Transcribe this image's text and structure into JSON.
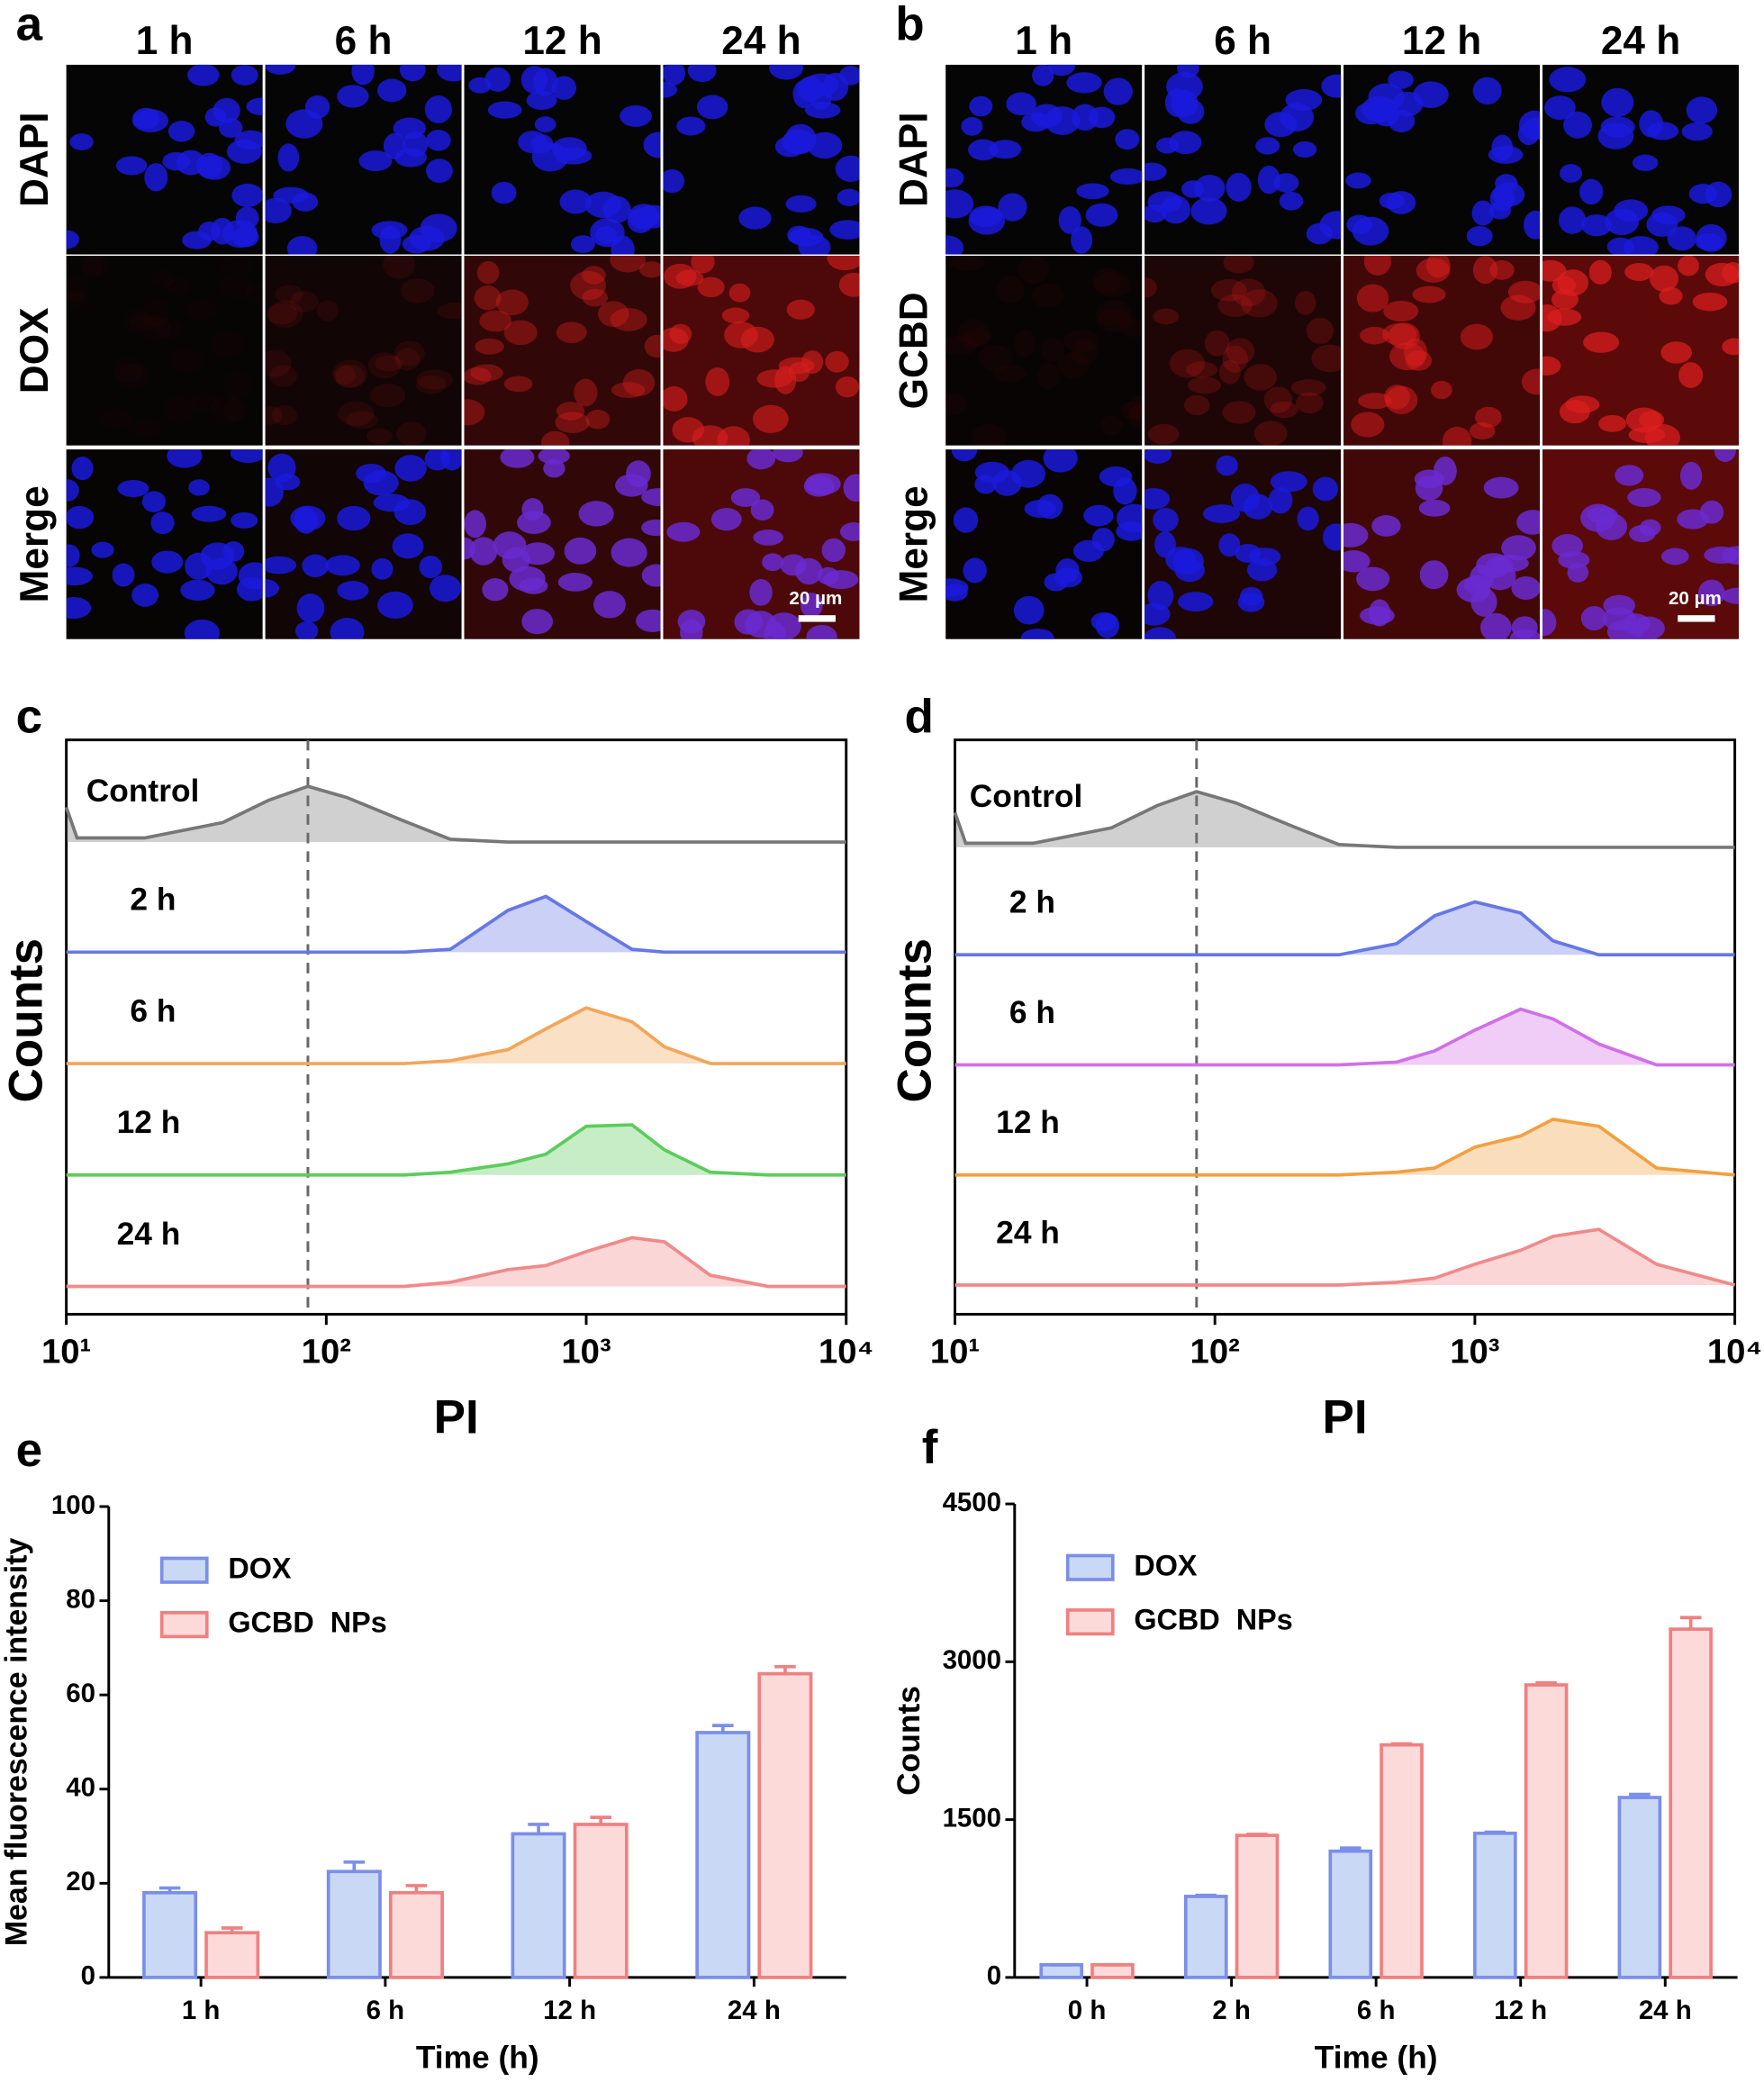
{
  "figure": {
    "panels": [
      {
        "letter": "a",
        "columns": [
          "1 h",
          "6 h",
          "12 h",
          "24 h"
        ],
        "rows": [
          "DAPI",
          "DOX",
          "Merge"
        ],
        "scale_bar": "20 µm"
      },
      {
        "letter": "b",
        "columns": [
          "1 h",
          "6 h",
          "12 h",
          "24 h"
        ],
        "rows": [
          "DAPI",
          "GCBD",
          "Merge"
        ],
        "scale_bar": "20 µm"
      }
    ]
  },
  "chart_data": [
    {
      "type": "histogram-stack",
      "panel": "c",
      "xlabel": "PI",
      "ylabel": "Counts",
      "log_x": true,
      "xlim": [
        10,
        10000
      ],
      "xticks": [
        {
          "value": 10,
          "label": "10¹"
        },
        {
          "value": 100,
          "label": "10²"
        },
        {
          "value": 1000,
          "label": "10³"
        },
        {
          "value": 10000,
          "label": "10⁴"
        }
      ],
      "reference_x": 85,
      "x": [
        10,
        11,
        20,
        40,
        60,
        85,
        120,
        200,
        300,
        500,
        700,
        1000,
        1500,
        2000,
        3000,
        5000,
        10000
      ],
      "series": [
        {
          "name": "Control",
          "color": "#777777",
          "values": [
            25,
            3,
            3,
            14,
            30,
            40,
            32,
            15,
            2,
            0,
            0,
            0,
            0,
            0,
            0,
            0,
            0
          ]
        },
        {
          "name": "2 h",
          "color": "#6677e6",
          "values": [
            0,
            0,
            0,
            0,
            0,
            0,
            0,
            0,
            2,
            30,
            40,
            22,
            2,
            0,
            0,
            0,
            0
          ]
        },
        {
          "name": "6 h",
          "color": "#f2a65a",
          "values": [
            0,
            0,
            0,
            0,
            0,
            0,
            0,
            0,
            2,
            10,
            25,
            40,
            30,
            12,
            0,
            0,
            0
          ]
        },
        {
          "name": "12 h",
          "color": "#5ccc5c",
          "values": [
            0,
            0,
            0,
            0,
            0,
            0,
            0,
            0,
            2,
            8,
            15,
            35,
            36,
            18,
            2,
            0,
            0
          ]
        },
        {
          "name": "24 h",
          "color": "#f08a8a",
          "values": [
            0,
            0,
            0,
            0,
            0,
            0,
            0,
            0,
            3,
            12,
            15,
            25,
            35,
            32,
            8,
            0,
            0
          ]
        }
      ]
    },
    {
      "type": "histogram-stack",
      "panel": "d",
      "xlabel": "PI",
      "ylabel": "Counts",
      "log_x": true,
      "xlim": [
        10,
        10000
      ],
      "xticks": [
        {
          "value": 10,
          "label": "10¹"
        },
        {
          "value": 100,
          "label": "10²"
        },
        {
          "value": 1000,
          "label": "10³"
        },
        {
          "value": 10000,
          "label": "10⁴"
        }
      ],
      "reference_x": 85,
      "x": [
        10,
        11,
        20,
        40,
        60,
        85,
        120,
        200,
        300,
        500,
        700,
        1000,
        1500,
        2000,
        3000,
        5000,
        10000
      ],
      "series": [
        {
          "name": "Control",
          "color": "#777777",
          "values": [
            25,
            3,
            3,
            14,
            30,
            40,
            32,
            15,
            2,
            0,
            0,
            0,
            0,
            0,
            0,
            0,
            0
          ]
        },
        {
          "name": "2 h",
          "color": "#6677e6",
          "values": [
            0,
            0,
            0,
            0,
            0,
            0,
            0,
            0,
            0,
            8,
            28,
            38,
            30,
            10,
            0,
            0,
            0
          ]
        },
        {
          "name": "6 h",
          "color": "#d070e8",
          "values": [
            0,
            0,
            0,
            0,
            0,
            0,
            0,
            0,
            0,
            2,
            10,
            25,
            40,
            33,
            15,
            0,
            0
          ]
        },
        {
          "name": "12 h",
          "color": "#f2a040",
          "values": [
            0,
            0,
            0,
            0,
            0,
            0,
            0,
            0,
            0,
            2,
            5,
            20,
            28,
            40,
            35,
            5,
            0
          ]
        },
        {
          "name": "24 h",
          "color": "#f08a8a",
          "values": [
            0,
            0,
            0,
            0,
            0,
            0,
            0,
            0,
            0,
            2,
            5,
            15,
            25,
            35,
            40,
            15,
            0
          ]
        }
      ]
    },
    {
      "type": "bar",
      "panel": "e",
      "xlabel": "Time (h)",
      "ylabel": "Mean fluorescence intensity",
      "categories": [
        "1 h",
        "6 h",
        "12 h",
        "24 h"
      ],
      "ylim": [
        0,
        100
      ],
      "yticks": [
        0,
        20,
        40,
        60,
        80,
        100
      ],
      "series": [
        {
          "name": "DOX",
          "color": "#c9d9f5",
          "edge": "#7b8ee8",
          "values": [
            18,
            22.5,
            30.5,
            52
          ],
          "errors": [
            1,
            2,
            2,
            1.5
          ]
        },
        {
          "name": "GCBD  NPs",
          "color": "#fcdada",
          "edge": "#f08080",
          "values": [
            9.5,
            18,
            32.5,
            64.5
          ],
          "errors": [
            1,
            1.5,
            1.5,
            1.5
          ]
        }
      ]
    },
    {
      "type": "bar",
      "panel": "f",
      "xlabel": "Time (h)",
      "ylabel": "Counts",
      "categories": [
        "0 h",
        "2 h",
        "6 h",
        "12 h",
        "24 h"
      ],
      "ylim": [
        0,
        4500
      ],
      "yticks": [
        0,
        1500,
        3000,
        4500
      ],
      "series": [
        {
          "name": "DOX",
          "color": "#c9d9f5",
          "edge": "#7b8ee8",
          "values": [
            120,
            770,
            1200,
            1370,
            1710
          ],
          "errors": [
            0,
            10,
            30,
            10,
            30
          ]
        },
        {
          "name": "GCBD  NPs",
          "color": "#fcdada",
          "edge": "#f08080",
          "values": [
            120,
            1350,
            2210,
            2780,
            3310
          ],
          "errors": [
            0,
            10,
            10,
            20,
            110
          ]
        }
      ]
    }
  ]
}
